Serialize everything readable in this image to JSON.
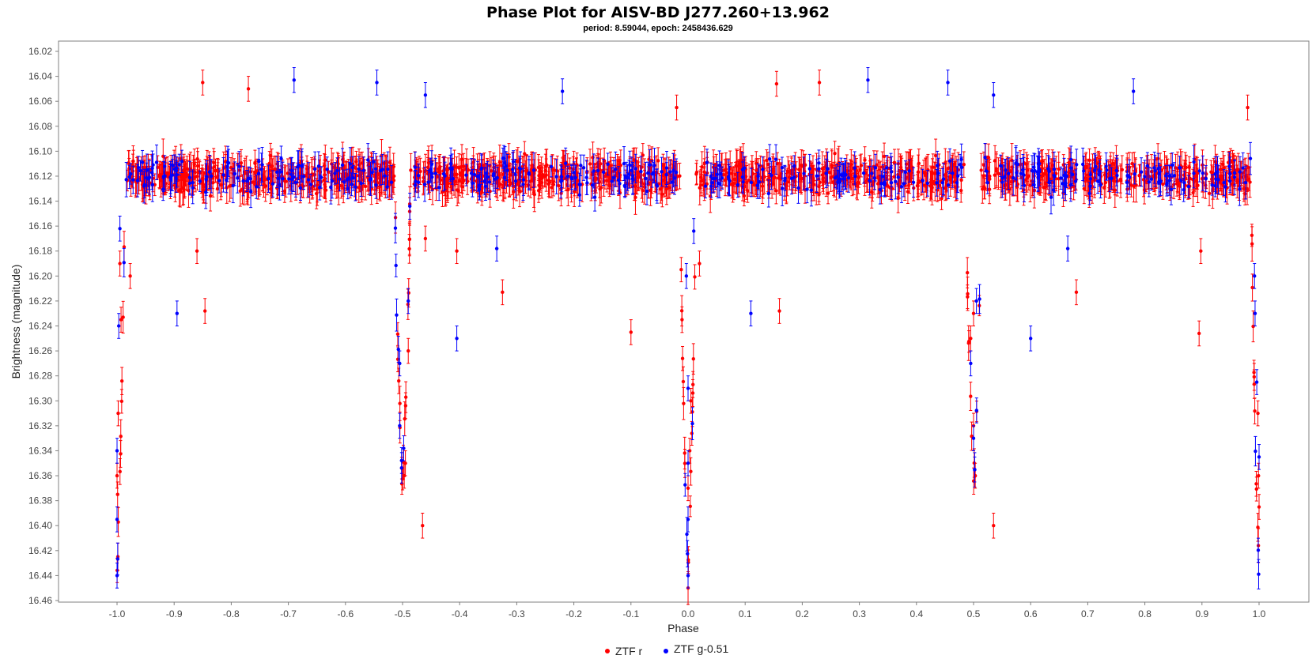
{
  "chart_data": {
    "type": "scatter",
    "title": "Phase Plot for AISV-BD J277.260+13.962",
    "subtitle": "period: 8.59044, epoch: 2458436.629",
    "xlabel": "Phase",
    "ylabel": "Brightness (magnitude)",
    "xlim": [
      -1.1,
      1.1
    ],
    "ylim": [
      16.02,
      16.46
    ],
    "y_inverted": true,
    "error_bars": true,
    "grid": false,
    "legend_position": "bottom-center",
    "xticks": [
      "-1.0",
      "-0.9",
      "-0.8",
      "-0.7",
      "-0.6",
      "-0.5",
      "-0.4",
      "-0.3",
      "-0.2",
      "-0.1",
      "0.0",
      "0.1",
      "0.2",
      "0.3",
      "0.4",
      "0.5",
      "0.6",
      "0.7",
      "0.8",
      "0.9",
      "1.0"
    ],
    "yticks": [
      "16.02",
      "16.04",
      "16.06",
      "16.08",
      "16.10",
      "16.12",
      "16.14",
      "16.16",
      "16.18",
      "16.20",
      "16.22",
      "16.24",
      "16.26",
      "16.28",
      "16.30",
      "16.32",
      "16.34",
      "16.36",
      "16.38",
      "16.40",
      "16.42",
      "16.44",
      "16.46"
    ],
    "light_curve": {
      "baseline": 16.12,
      "primary_min_phase": 0.0,
      "primary_min_depth": 16.44,
      "secondary_min_phase": 0.5,
      "secondary_min_depth": 16.37,
      "eclipse_half_width": 0.013
    },
    "series": [
      {
        "name": "ZTF r",
        "color": "#ff0000",
        "points": [
          [
            -0.995,
            16.19
          ],
          [
            -0.993,
            16.235
          ],
          [
            -0.998,
            16.31
          ],
          [
            -1.0,
            16.36
          ],
          [
            -0.999,
            16.375
          ],
          [
            -0.977,
            16.2
          ],
          [
            -0.85,
            16.045
          ],
          [
            -0.846,
            16.228
          ],
          [
            -0.86,
            16.18
          ],
          [
            -0.77,
            16.05
          ],
          [
            -0.49,
            16.26
          ],
          [
            -0.495,
            16.35
          ],
          [
            -0.497,
            16.36
          ],
          [
            -0.465,
            16.4
          ],
          [
            -0.46,
            16.17
          ],
          [
            -0.405,
            16.18
          ],
          [
            -0.325,
            16.213
          ],
          [
            -0.1,
            16.245
          ],
          [
            -0.02,
            16.065
          ],
          [
            0.005,
            16.3
          ],
          [
            0.003,
            16.34
          ],
          [
            0.0,
            16.37
          ],
          [
            0.02,
            16.19
          ],
          [
            0.16,
            16.228
          ],
          [
            0.155,
            16.046
          ],
          [
            0.23,
            16.045
          ],
          [
            0.495,
            16.25
          ],
          [
            0.5,
            16.32
          ],
          [
            0.503,
            16.36
          ],
          [
            0.535,
            16.4
          ],
          [
            0.5,
            16.23
          ],
          [
            0.68,
            16.213
          ],
          [
            0.895,
            16.246
          ],
          [
            0.898,
            16.18
          ],
          [
            0.98,
            16.065
          ],
          [
            0.998,
            16.31
          ],
          [
            0.999,
            16.36
          ],
          [
            1.0,
            16.385
          ]
        ]
      },
      {
        "name": "ZTF g-0.51",
        "color": "#0000ff",
        "points": [
          [
            -0.997,
            16.24
          ],
          [
            -0.995,
            16.162
          ],
          [
            -1.0,
            16.34
          ],
          [
            -1.0,
            16.395
          ],
          [
            -1.0,
            16.44
          ],
          [
            -0.895,
            16.23
          ],
          [
            -0.69,
            16.043
          ],
          [
            -0.545,
            16.045
          ],
          [
            -0.505,
            16.27
          ],
          [
            -0.505,
            16.32
          ],
          [
            -0.498,
            16.338
          ],
          [
            -0.49,
            16.22
          ],
          [
            -0.46,
            16.055
          ],
          [
            -0.405,
            16.25
          ],
          [
            -0.335,
            16.178
          ],
          [
            -0.22,
            16.052
          ],
          [
            0.0,
            16.29
          ],
          [
            0.0,
            16.35
          ],
          [
            0.0,
            16.395
          ],
          [
            0.0,
            16.44
          ],
          [
            -0.003,
            16.2
          ],
          [
            0.01,
            16.164
          ],
          [
            0.11,
            16.23
          ],
          [
            0.315,
            16.043
          ],
          [
            0.455,
            16.045
          ],
          [
            0.495,
            16.27
          ],
          [
            0.5,
            16.33
          ],
          [
            0.502,
            16.355
          ],
          [
            0.505,
            16.22
          ],
          [
            0.535,
            16.055
          ],
          [
            0.6,
            16.25
          ],
          [
            0.665,
            16.178
          ],
          [
            0.78,
            16.052
          ],
          [
            0.992,
            16.2
          ],
          [
            0.993,
            16.23
          ],
          [
            0.996,
            16.285
          ],
          [
            1.0,
            16.345
          ]
        ]
      }
    ]
  },
  "legend": {
    "r_label": "ZTF r",
    "g_label": "ZTF g-0.51"
  }
}
